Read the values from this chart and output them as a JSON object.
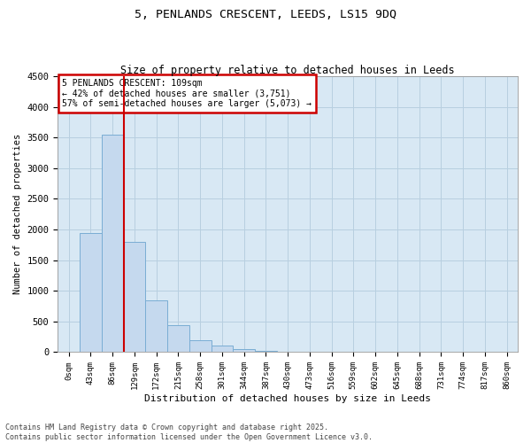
{
  "title_line1": "5, PENLANDS CRESCENT, LEEDS, LS15 9DQ",
  "title_line2": "Size of property relative to detached houses in Leeds",
  "xlabel": "Distribution of detached houses by size in Leeds",
  "ylabel": "Number of detached properties",
  "bar_labels": [
    "0sqm",
    "43sqm",
    "86sqm",
    "129sqm",
    "172sqm",
    "215sqm",
    "258sqm",
    "301sqm",
    "344sqm",
    "387sqm",
    "430sqm",
    "473sqm",
    "516sqm",
    "559sqm",
    "602sqm",
    "645sqm",
    "688sqm",
    "731sqm",
    "774sqm",
    "817sqm",
    "860sqm"
  ],
  "bar_values": [
    0,
    1950,
    3540,
    1800,
    850,
    440,
    200,
    110,
    55,
    20,
    5,
    3,
    1,
    1,
    0,
    0,
    0,
    0,
    0,
    0,
    0
  ],
  "bar_color": "#c5d9ee",
  "bar_edge_color": "#7aadd4",
  "ylim": [
    0,
    4500
  ],
  "yticks": [
    0,
    500,
    1000,
    1500,
    2000,
    2500,
    3000,
    3500,
    4000,
    4500
  ],
  "vline_x": 2.5,
  "vline_color": "#cc0000",
  "annotation_text": "5 PENLANDS CRESCENT: 109sqm\n← 42% of detached houses are smaller (3,751)\n57% of semi-detached houses are larger (5,073) →",
  "annotation_box_color": "#cc0000",
  "annotation_fill": "#ffffff",
  "grid_color": "#b8cfe0",
  "bg_color": "#d8e8f4",
  "footer_line1": "Contains HM Land Registry data © Crown copyright and database right 2025.",
  "footer_line2": "Contains public sector information licensed under the Open Government Licence v3.0."
}
